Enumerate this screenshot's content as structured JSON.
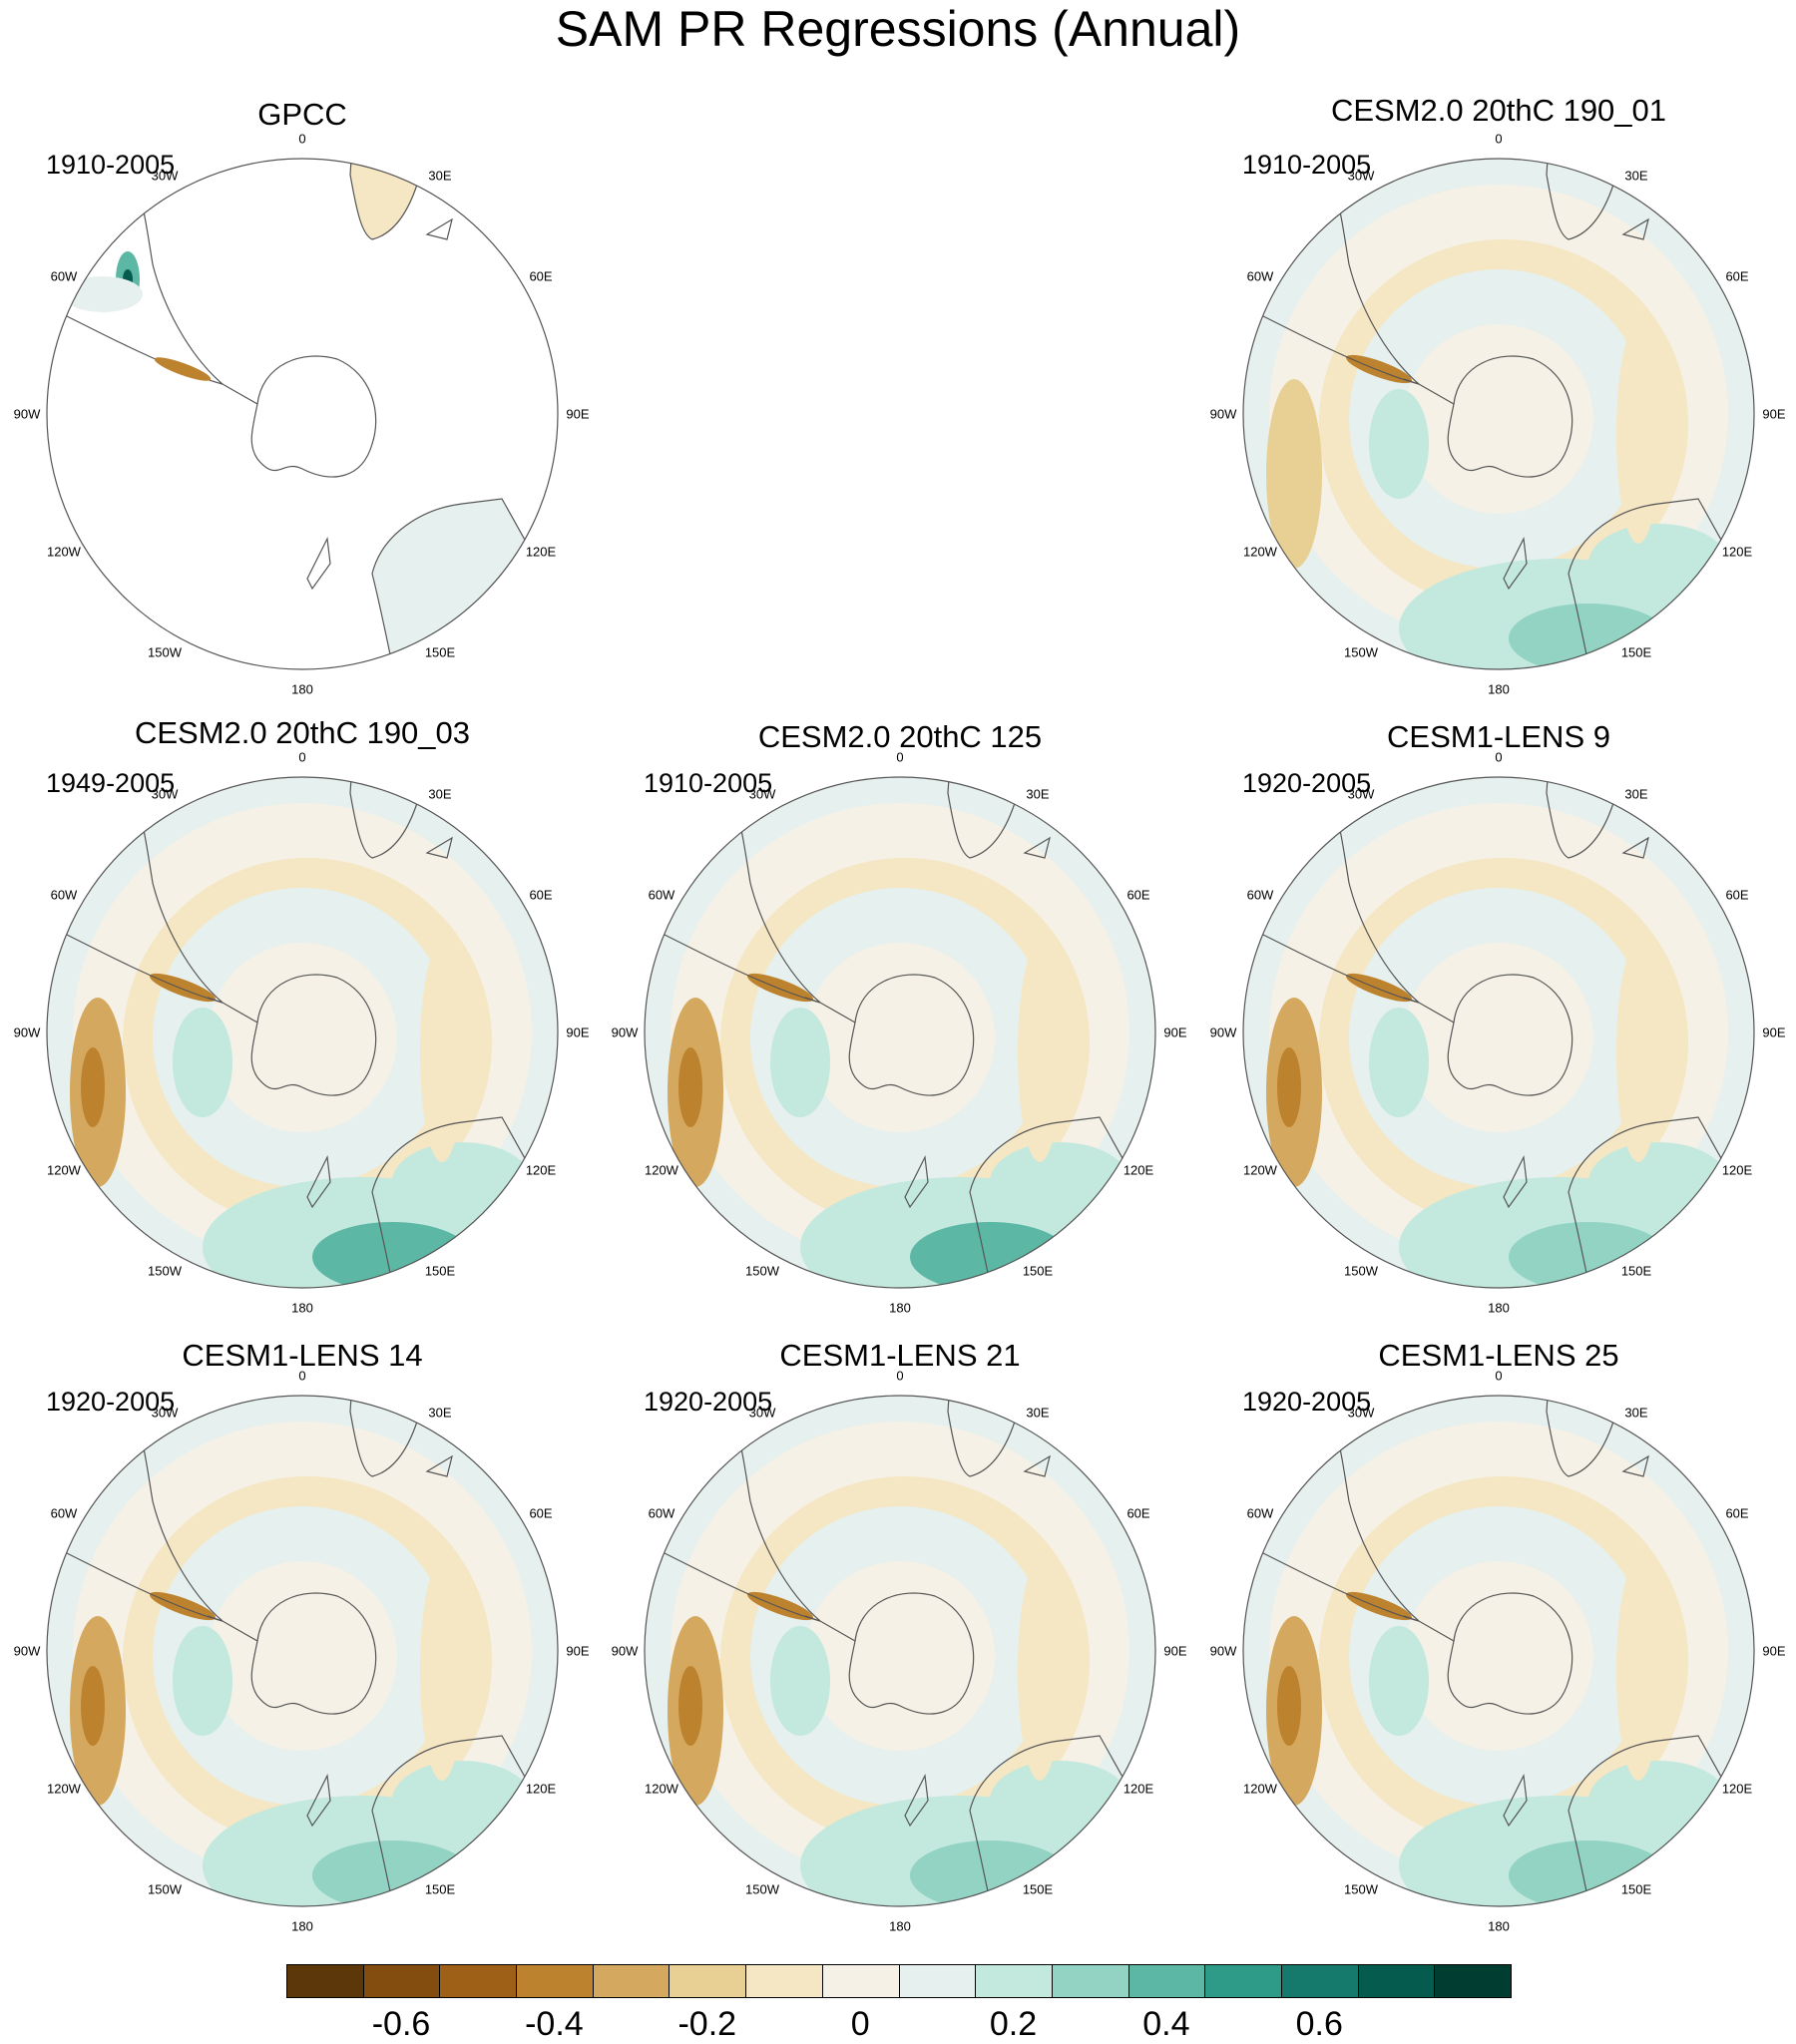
{
  "title": "SAM PR Regressions (Annual)",
  "longitude_labels": [
    "0",
    "30E",
    "60E",
    "90E",
    "120E",
    "150E",
    "180",
    "150W",
    "120W",
    "90W",
    "60W",
    "30W"
  ],
  "panels": [
    {
      "title": "GPCC",
      "period": "1910-2005",
      "ocean_fill": false
    },
    {
      "title": "CESM2.0 20thC 190_01",
      "period": "1910-2005",
      "ocean_fill": true
    },
    {
      "title": "CESM2.0 20thC 190_03",
      "period": "1949-2005",
      "ocean_fill": true
    },
    {
      "title": "CESM2.0 20thC 125",
      "period": "1910-2005",
      "ocean_fill": true
    },
    {
      "title": "CESM1-LENS 9",
      "period": "1920-2005",
      "ocean_fill": true
    },
    {
      "title": "CESM1-LENS 14",
      "period": "1920-2005",
      "ocean_fill": true
    },
    {
      "title": "CESM1-LENS 21",
      "period": "1920-2005",
      "ocean_fill": true
    },
    {
      "title": "CESM1-LENS 25",
      "period": "1920-2005",
      "ocean_fill": true
    }
  ],
  "colorbar": {
    "colors": [
      "#5b3709",
      "#824d0f",
      "#9e6016",
      "#bd822e",
      "#d4a85e",
      "#e8cf93",
      "#f5e6c4",
      "#f5f1e6",
      "#e6f0ee",
      "#c3e8de",
      "#92d3c4",
      "#5cb7a5",
      "#2e9a88",
      "#157a6b",
      "#055c4e",
      "#013d31"
    ],
    "tick_labels": [
      "-0.6",
      "-0.4",
      "-0.2",
      "0",
      "0.2",
      "0.4",
      "0.6"
    ],
    "tick_values": [
      -0.6,
      -0.4,
      -0.2,
      0,
      0.2,
      0.4,
      0.6
    ]
  }
}
